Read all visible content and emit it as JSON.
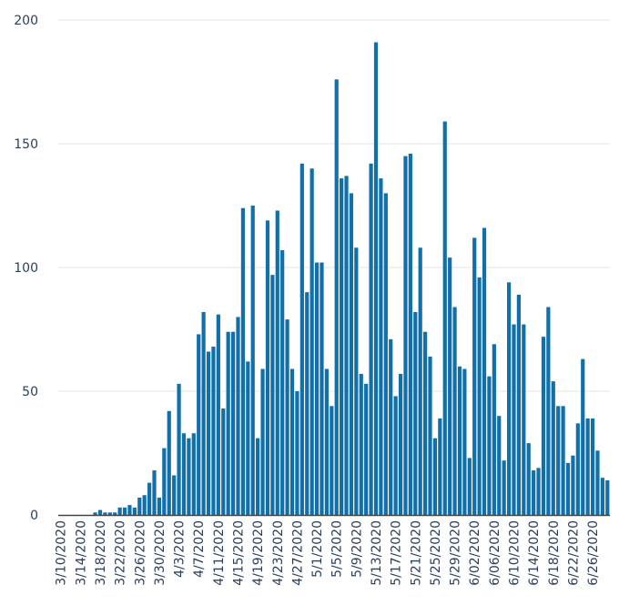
{
  "chart_data": {
    "type": "bar",
    "title": "",
    "xlabel": "",
    "ylabel": "",
    "ylim": [
      0,
      200
    ],
    "grid": true,
    "y_ticks": [
      0,
      50,
      100,
      150,
      200
    ],
    "bar_color": "#1170aa",
    "x_tick_labels": [
      "3/10/2020",
      "3/14/2020",
      "3/18/2020",
      "3/22/2020",
      "3/26/2020",
      "3/30/2020",
      "4/3/2020",
      "4/7/2020",
      "4/11/2020",
      "4/15/2020",
      "4/19/2020",
      "4/23/2020",
      "4/27/2020",
      "5/1/2020",
      "5/5/2020",
      "5/9/2020",
      "5/13/2020",
      "5/17/2020",
      "5/21/2020",
      "5/25/2020",
      "5/29/2020",
      "6/02/2020",
      "6/06/2020",
      "6/10/2020",
      "6/14/2020",
      "6/18/2020",
      "6/22/2020",
      "6/26/2020"
    ],
    "start_date": "3/10/2020",
    "values": [
      0,
      0,
      0,
      0,
      0,
      0,
      0,
      1,
      2,
      1,
      1,
      1,
      3,
      3,
      4,
      3,
      7,
      8,
      13,
      18,
      7,
      27,
      42,
      16,
      53,
      33,
      31,
      33,
      73,
      82,
      66,
      68,
      81,
      43,
      74,
      74,
      80,
      124,
      62,
      125,
      31,
      59,
      119,
      97,
      123,
      107,
      79,
      59,
      50,
      142,
      90,
      140,
      102,
      102,
      59,
      44,
      176,
      136,
      137,
      130,
      108,
      57,
      53,
      142,
      191,
      136,
      130,
      71,
      48,
      57,
      145,
      146,
      82,
      108,
      74,
      64,
      31,
      39,
      159,
      104,
      84,
      60,
      59,
      23,
      112,
      96,
      116,
      56,
      69,
      40,
      22,
      94,
      77,
      89,
      77,
      29,
      18,
      19,
      72,
      84,
      54,
      44,
      44,
      21,
      24,
      37,
      63,
      39,
      39,
      26,
      15,
      14
    ]
  }
}
